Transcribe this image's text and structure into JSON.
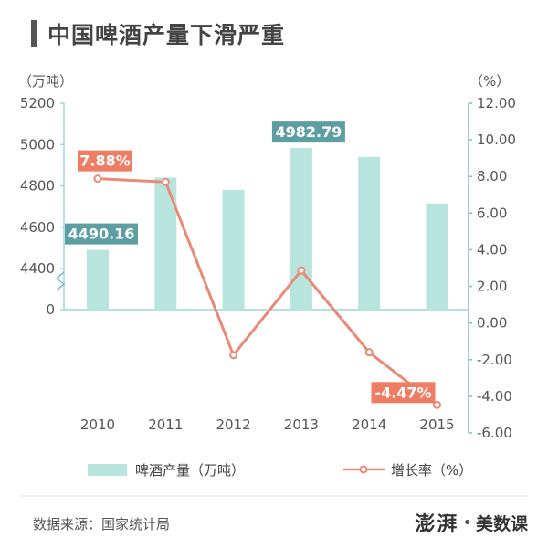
{
  "page": {
    "title": "中国啤酒产量下滑严重",
    "source": "数据来源：国家统计局",
    "brand_name": "澎湃",
    "brand_dot": "•",
    "brand_sub": "美数课"
  },
  "colors": {
    "bar": "#b8e4de",
    "line": "#e88a76",
    "axis_right": "#7fbcc4",
    "axis_left": "#9fd5d5",
    "label_bar_bg": "#5c9ea1",
    "label_line_bg": "#ee7d63"
  },
  "chart_data": {
    "type": "bar+line",
    "title": "中国啤酒产量下滑严重",
    "categories": [
      "2010",
      "2011",
      "2012",
      "2013",
      "2014",
      "2015"
    ],
    "series": [
      {
        "name": "啤酒产量（万吨）",
        "type": "bar",
        "axis": "left",
        "values": [
          4490.16,
          4840,
          4780,
          4982.79,
          4940,
          4715
        ]
      },
      {
        "name": "增长率（%）",
        "type": "line",
        "axis": "right",
        "values": [
          7.88,
          7.7,
          -1.75,
          2.87,
          -1.6,
          -4.47
        ]
      }
    ],
    "left_axis": {
      "unit": "（万吨）",
      "ticks": [
        "5200",
        "5000",
        "4800",
        "4600",
        "4400",
        "0"
      ],
      "tick_values": [
        5200,
        5000,
        4800,
        4600,
        4400
      ],
      "ylim": [
        4200,
        5200
      ],
      "broken": true
    },
    "right_axis": {
      "unit": "（%）",
      "ticks": [
        "12.00",
        "10.00",
        "8.00",
        "6.00",
        "4.00",
        "2.00",
        "0.00",
        "-2.00",
        "-4.00",
        "-6.00"
      ],
      "ylim": [
        -6,
        12
      ]
    },
    "annotations": [
      {
        "series": 0,
        "index": 0,
        "text": "4490.16"
      },
      {
        "series": 0,
        "index": 3,
        "text": "4982.79"
      },
      {
        "series": 1,
        "index": 0,
        "text": "7.88%"
      },
      {
        "series": 1,
        "index": 5,
        "text": "-4.47%"
      }
    ],
    "legend": {
      "position": "bottom",
      "items": [
        "啤酒产量（万吨）",
        "增长率（%）"
      ]
    },
    "grid": false
  }
}
